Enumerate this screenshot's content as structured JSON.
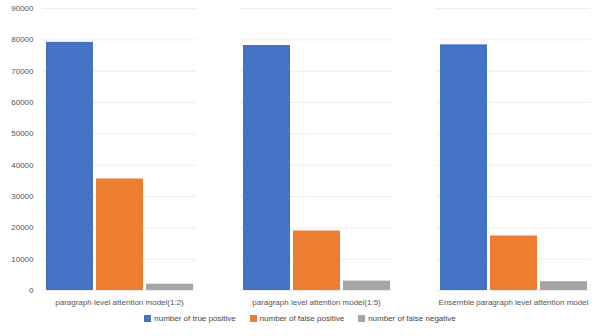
{
  "chart_data": {
    "type": "bar",
    "categories": [
      "paragraph level attention model(1:2)",
      "paragraph level attention model(1:5)",
      "Ensemble paragraph level attention model"
    ],
    "series": [
      {
        "name": "number of true positive",
        "color": "#4472c4",
        "values": [
          79200,
          78200,
          78400
        ]
      },
      {
        "name": "number of false positive",
        "color": "#ed7d31",
        "values": [
          35600,
          19000,
          17400
        ]
      },
      {
        "name": "number of false negative",
        "color": "#a5a5a5",
        "values": [
          2000,
          3000,
          2800
        ]
      }
    ],
    "ylim": [
      0,
      90000
    ],
    "yticks": [
      0,
      10000,
      20000,
      30000,
      40000,
      50000,
      60000,
      70000,
      80000,
      90000
    ],
    "grid": true,
    "legend": "bottom"
  }
}
